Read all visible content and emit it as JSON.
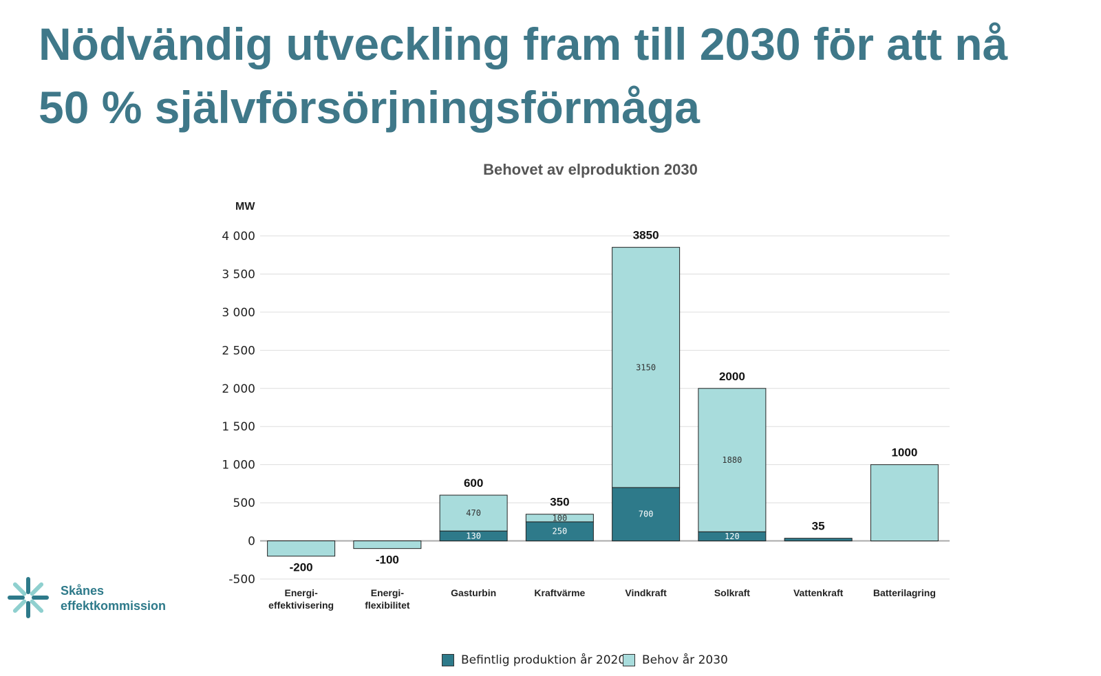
{
  "slide": {
    "title_lines": [
      "Nödvändig utveckling fram till 2030 för att nå",
      "50 % självförsörjningsförmåga"
    ]
  },
  "logo": {
    "lines": [
      "Skånes",
      "effektkommission"
    ],
    "icon": "asterisk-burst-icon",
    "colors": [
      "#2e7a8a",
      "#8fd0cf"
    ]
  },
  "legend": {
    "items": [
      {
        "label": "Befintlig produktion år 2020",
        "color": "#2e7a8a"
      },
      {
        "label": "Behov år 2030",
        "color": "#a8dcdc"
      }
    ]
  },
  "chart_data": {
    "type": "bar",
    "stacked": true,
    "title": "Behovet av elproduktion 2030",
    "ylabel": "MW",
    "ylim": [
      -500,
      4000
    ],
    "yticks": [
      -500,
      0,
      500,
      1000,
      1500,
      2000,
      2500,
      3000,
      3500,
      4000
    ],
    "ytick_labels": [
      "-500",
      "0",
      "500",
      "1 000",
      "1 500",
      "2 000",
      "2 500",
      "3 000",
      "3 500",
      "4 000"
    ],
    "grid": true,
    "legend_position": "bottom",
    "categories": [
      [
        "Energi-",
        "effektivisering"
      ],
      [
        "Energi-",
        "flexibilitet"
      ],
      [
        "Gasturbin"
      ],
      [
        "Kraftvärme"
      ],
      [
        "Vindkraft"
      ],
      [
        "Solkraft"
      ],
      [
        "Vattenkraft"
      ],
      [
        "Batterilagring"
      ]
    ],
    "series": [
      {
        "name": "Befintlig produktion år 2020",
        "color": "#2e7a8a",
        "values": [
          0,
          0,
          130,
          250,
          700,
          120,
          35,
          0
        ],
        "labels": [
          "",
          "",
          "130",
          "250",
          "700",
          "120",
          "",
          ""
        ]
      },
      {
        "name": "Behov år 2030",
        "color": "#a8dcdc",
        "values": [
          -200,
          -100,
          470,
          100,
          3150,
          1880,
          0,
          1000
        ],
        "labels": [
          "",
          "",
          "470",
          "100",
          "3150",
          "1880",
          "",
          ""
        ]
      }
    ],
    "totals": [
      "-200",
      "-100",
      "600",
      "350",
      "3850",
      "2000",
      "35",
      "1000"
    ]
  }
}
